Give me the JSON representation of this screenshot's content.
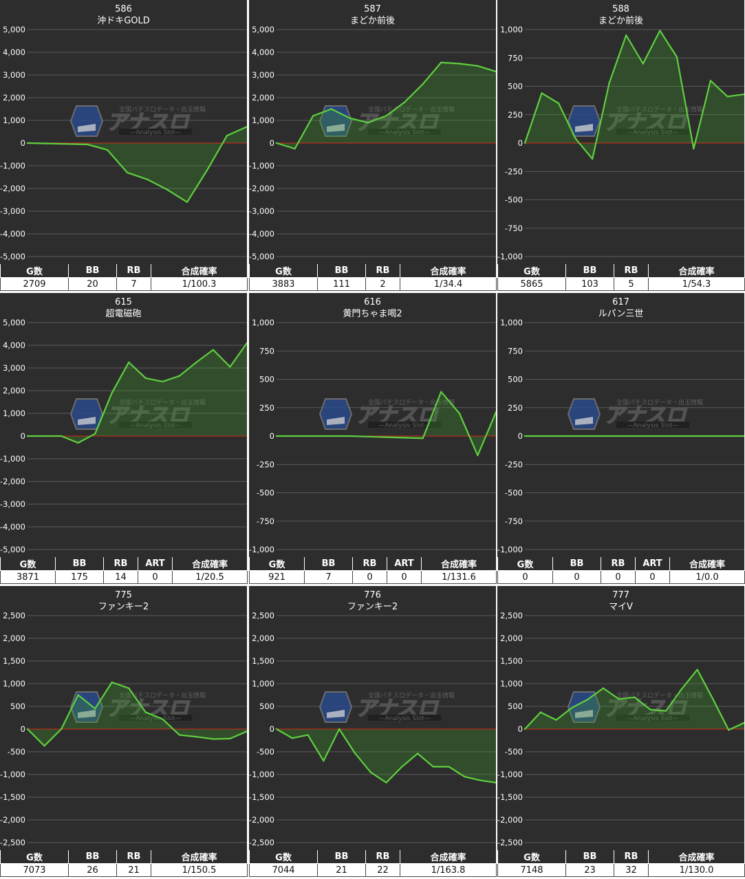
{
  "watermark": {
    "brand": "アナスロ",
    "tagline": "全国パチスロデータ・出玉情報",
    "sub": "—Analysis Slot—"
  },
  "chart_data": [
    {
      "type": "area",
      "title": "586",
      "subtitle": "沖ドキGOLD",
      "ylim": [
        -5000,
        5000
      ],
      "yticks": [
        -5000,
        -4000,
        -3000,
        -2000,
        -1000,
        0,
        1000,
        2000,
        3000,
        4000,
        5000
      ],
      "series": [
        {
          "values": [
            0,
            -20,
            -40,
            -60,
            -300,
            -1300,
            -1600,
            -2050,
            -2600,
            -1200,
            330,
            720
          ]
        }
      ],
      "stats": {
        "headers": [
          "G数",
          "BB",
          "RB",
          "合成確率"
        ],
        "values": [
          "2709",
          "20",
          "7",
          "1/100.3"
        ]
      }
    },
    {
      "type": "area",
      "title": "587",
      "subtitle": "まどか前後",
      "ylim": [
        -5000,
        5000
      ],
      "yticks": [
        -5000,
        -4000,
        -3000,
        -2000,
        -1000,
        0,
        1000,
        2000,
        3000,
        4000,
        5000
      ],
      "series": [
        {
          "values": [
            0,
            -250,
            1200,
            1500,
            1100,
            900,
            1200,
            1800,
            2600,
            3550,
            3500,
            3400,
            3150
          ]
        }
      ],
      "stats": {
        "headers": [
          "G数",
          "BB",
          "RB",
          "合成確率"
        ],
        "values": [
          "3883",
          "111",
          "2",
          "1/34.4"
        ]
      }
    },
    {
      "type": "area",
      "title": "588",
      "subtitle": "まどか前後",
      "ylim": [
        -1000,
        1000
      ],
      "yticks": [
        -1000,
        -750,
        -500,
        -250,
        0,
        250,
        500,
        750,
        1000
      ],
      "series": [
        {
          "values": [
            0,
            440,
            350,
            40,
            -140,
            530,
            950,
            700,
            990,
            760,
            -50,
            550,
            410,
            430
          ]
        }
      ],
      "stats": {
        "headers": [
          "G数",
          "BB",
          "RB",
          "合成確率"
        ],
        "values": [
          "5865",
          "103",
          "5",
          "1/54.3"
        ]
      }
    },
    {
      "type": "area",
      "title": "615",
      "subtitle": "超電磁砲",
      "ylim": [
        -5000,
        5000
      ],
      "yticks": [
        -5000,
        -4000,
        -3000,
        -2000,
        -1000,
        0,
        1000,
        2000,
        3000,
        4000,
        5000
      ],
      "series": [
        {
          "values": [
            0,
            0,
            0,
            -300,
            100,
            1900,
            3250,
            2550,
            2400,
            2650,
            3250,
            3800,
            3050,
            4100
          ]
        }
      ],
      "stats": {
        "headers": [
          "G数",
          "BB",
          "RB",
          "ART",
          "合成確率"
        ],
        "values": [
          "3871",
          "175",
          "14",
          "0",
          "1/20.5"
        ]
      }
    },
    {
      "type": "area",
      "title": "616",
      "subtitle": "黄門ちゃま喝2",
      "ylim": [
        -1000,
        1000
      ],
      "yticks": [
        -1000,
        -750,
        -500,
        -250,
        0,
        250,
        500,
        750,
        1000
      ],
      "series": [
        {
          "values": [
            0,
            0,
            0,
            0,
            0,
            -5,
            -10,
            -15,
            -20,
            390,
            200,
            -170,
            210
          ]
        }
      ],
      "stats": {
        "headers": [
          "G数",
          "BB",
          "RB",
          "ART",
          "合成確率"
        ],
        "values": [
          "921",
          "7",
          "0",
          "0",
          "1/131.6"
        ]
      }
    },
    {
      "type": "area",
      "title": "617",
      "subtitle": "ルパン三世",
      "ylim": [
        -1000,
        1000
      ],
      "yticks": [
        -1000,
        -750,
        -500,
        -250,
        0,
        250,
        500,
        750,
        1000
      ],
      "series": [
        {
          "values": [
            0,
            0
          ]
        }
      ],
      "stats": {
        "headers": [
          "G数",
          "BB",
          "RB",
          "ART",
          "合成確率"
        ],
        "values": [
          "0",
          "0",
          "0",
          "0",
          "1/0.0"
        ]
      }
    },
    {
      "type": "area",
      "title": "775",
      "subtitle": "ファンキー2",
      "ylim": [
        -2500,
        2500
      ],
      "yticks": [
        -2500,
        -2000,
        -1500,
        -1000,
        -500,
        0,
        500,
        1000,
        1500,
        2000,
        2500
      ],
      "series": [
        {
          "values": [
            0,
            -370,
            0,
            750,
            450,
            1030,
            900,
            370,
            220,
            -130,
            -170,
            -220,
            -210,
            -50
          ]
        }
      ],
      "stats": {
        "headers": [
          "G数",
          "BB",
          "RB",
          "合成確率"
        ],
        "values": [
          "7073",
          "26",
          "21",
          "1/150.5"
        ]
      }
    },
    {
      "type": "area",
      "title": "776",
      "subtitle": "ファンキー2",
      "ylim": [
        -2500,
        2500
      ],
      "yticks": [
        -2500,
        -2000,
        -1500,
        -1000,
        -500,
        0,
        500,
        1000,
        1500,
        2000,
        2500
      ],
      "series": [
        {
          "values": [
            0,
            -200,
            -130,
            -700,
            0,
            -530,
            -950,
            -1180,
            -830,
            -540,
            -830,
            -830,
            -1050,
            -1130,
            -1180
          ]
        }
      ],
      "stats": {
        "headers": [
          "G数",
          "BB",
          "RB",
          "合成確率"
        ],
        "values": [
          "7044",
          "21",
          "22",
          "1/163.8"
        ]
      }
    },
    {
      "type": "area",
      "title": "777",
      "subtitle": "マイV",
      "ylim": [
        -2500,
        2500
      ],
      "yticks": [
        -2500,
        -2000,
        -1500,
        -1000,
        -500,
        0,
        500,
        1000,
        1500,
        2000,
        2500
      ],
      "series": [
        {
          "values": [
            0,
            370,
            200,
            470,
            650,
            900,
            660,
            700,
            430,
            400,
            880,
            1310,
            660,
            -20,
            140
          ]
        }
      ],
      "stats": {
        "headers": [
          "G数",
          "BB",
          "RB",
          "合成確率"
        ],
        "values": [
          "7148",
          "23",
          "32",
          "1/130.0"
        ]
      }
    }
  ]
}
